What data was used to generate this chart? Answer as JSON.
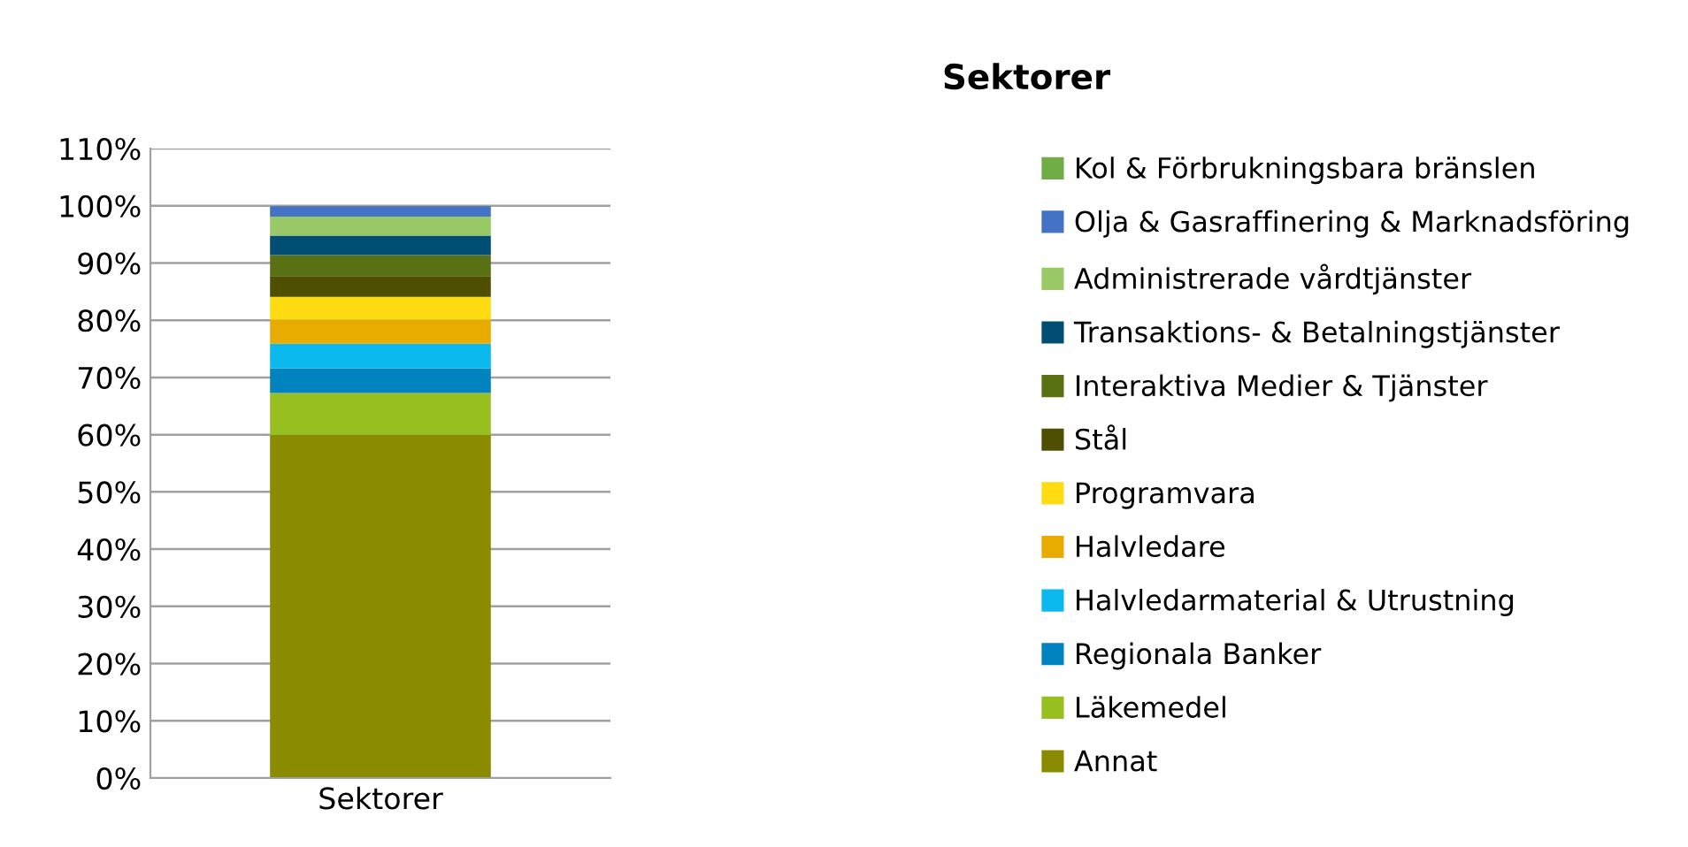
{
  "chart_data": {
    "type": "bar",
    "title": "Sektorer",
    "stacked": true,
    "categories": [
      "Sektorer"
    ],
    "series": [
      {
        "name": "Annat",
        "color": "#8b8b00",
        "values": [
          60
        ]
      },
      {
        "name": "Läkemedel",
        "color": "#97bf20",
        "values": [
          7.3
        ]
      },
      {
        "name": "Regionala Banker",
        "color": "#0083bf",
        "values": [
          4.3
        ]
      },
      {
        "name": "Halvledarmaterial & Utrustning",
        "color": "#0bb9ef",
        "values": [
          4.3
        ]
      },
      {
        "name": "Halvledare",
        "color": "#e8ab00",
        "values": [
          4.2
        ]
      },
      {
        "name": "Programvara",
        "color": "#ffdb12",
        "values": [
          4.0
        ]
      },
      {
        "name": "Stål",
        "color": "#4f4f00",
        "values": [
          3.6
        ]
      },
      {
        "name": "Interaktiva Medier & Tjänster",
        "color": "#5a7113",
        "values": [
          3.7
        ]
      },
      {
        "name": "Transaktions- & Betalningstjänster",
        "color": "#004e74",
        "values": [
          3.4
        ]
      },
      {
        "name": "Administrerade vårdtjänster",
        "color": "#98c966",
        "values": [
          3.3
        ]
      },
      {
        "name": "Olja & Gasraffinering & Marknadsföring",
        "color": "#4472c4",
        "values": [
          1.8
        ]
      },
      {
        "name": "Kol & Förbrukningsbara bränslen",
        "color": "#70ad47",
        "values": [
          null
        ]
      }
    ],
    "ylim": [
      0,
      110
    ],
    "yticks": [
      {
        "value": 0,
        "label": "0%"
      },
      {
        "value": 10,
        "label": "10%"
      },
      {
        "value": 20,
        "label": "20%"
      },
      {
        "value": 30,
        "label": "30%"
      },
      {
        "value": 40,
        "label": "40%"
      },
      {
        "value": 50,
        "label": "50%"
      },
      {
        "value": 60,
        "label": "60%"
      },
      {
        "value": 70,
        "label": "70%"
      },
      {
        "value": 80,
        "label": "80%"
      },
      {
        "value": 90,
        "label": "90%"
      },
      {
        "value": 100,
        "label": "100%"
      },
      {
        "value": 110,
        "label": "110%"
      }
    ],
    "grid": "y",
    "legend": "right"
  }
}
